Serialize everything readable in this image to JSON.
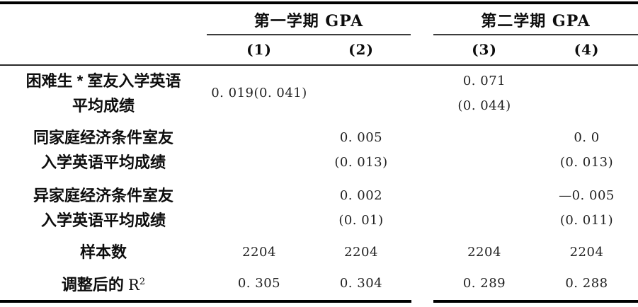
{
  "table": {
    "groups": [
      {
        "title": "第一学期 GPA"
      },
      {
        "title": "第二学期 GPA"
      }
    ],
    "col_headers": [
      "(1)",
      "(2)",
      "(3)",
      "(4)"
    ],
    "rows": {
      "r1": {
        "label1": "困难生 * 室友入学英语",
        "label2": "平均成绩",
        "c1": "0. 019(0. 041)",
        "c3_value": "0. 071",
        "c3_se": "(0. 044)"
      },
      "r2": {
        "label1": "同家庭经济条件室友",
        "label2": "入学英语平均成绩",
        "c2_value": "0. 005",
        "c2_se": "(0. 013)",
        "c4_value": "0. 0",
        "c4_se": "(0. 013)"
      },
      "r3": {
        "label1": "异家庭经济条件室友",
        "label2": "入学英语平均成绩",
        "c2_value": "0. 002",
        "c2_se": "(0. 01)",
        "c4_value": "—0. 005",
        "c4_se": "(0. 011)"
      },
      "r4": {
        "label": "样本数",
        "c1": "2204",
        "c2": "2204",
        "c3": "2204",
        "c4": "2204"
      },
      "r5": {
        "label_zh": "调整后的",
        "label_r": "R",
        "label_sup": "2",
        "c1": "0. 305",
        "c2": "0. 304",
        "c3": "0. 289",
        "c4": "0. 288"
      }
    },
    "rule_color": "#000000",
    "background": "#ffffff"
  }
}
